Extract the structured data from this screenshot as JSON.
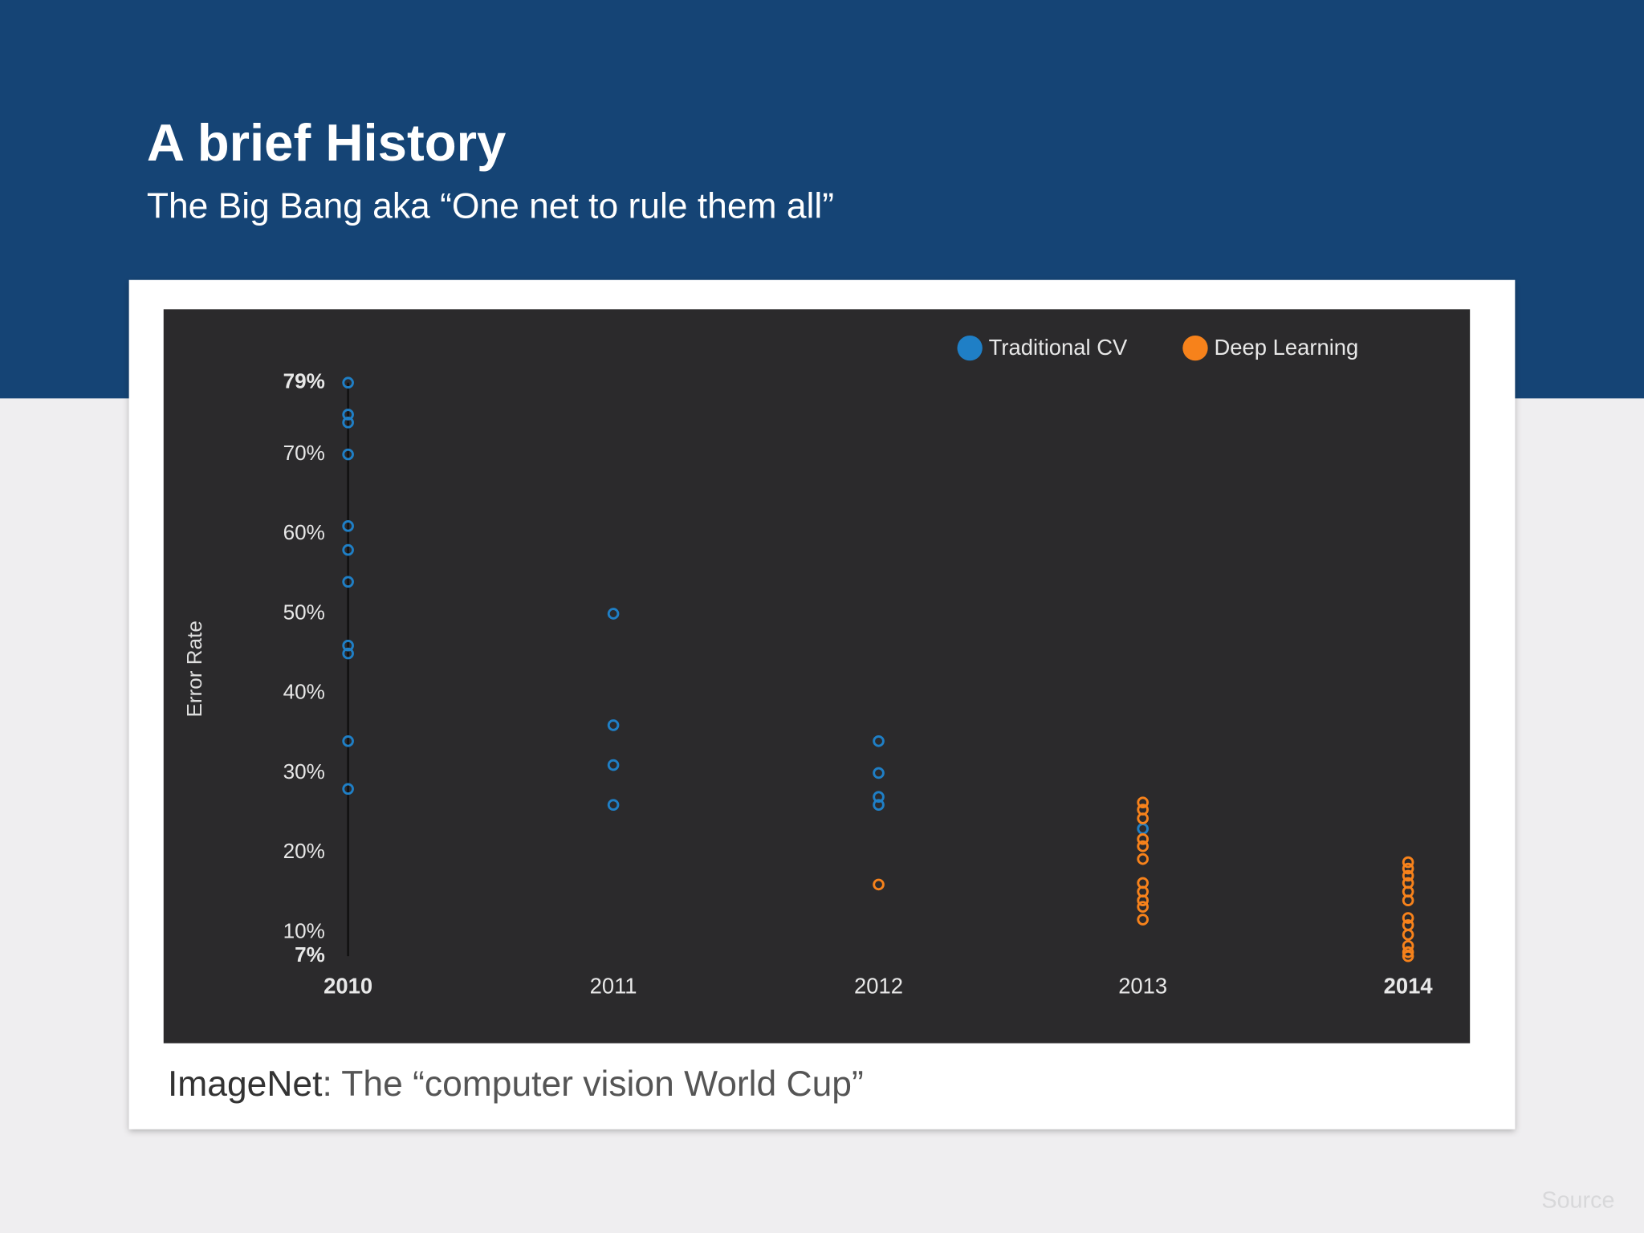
{
  "header": {
    "title": "A brief History",
    "subtitle": "The Big Bang aka “One net to rule them all”"
  },
  "chart_data": {
    "type": "scatter",
    "y_label": "Error Rate",
    "categories": [
      "2010",
      "2011",
      "2012",
      "2013",
      "2014"
    ],
    "ylim": [
      7,
      79
    ],
    "yticks": [
      {
        "value": 79,
        "label": "79%"
      },
      {
        "value": 70,
        "label": "70%"
      },
      {
        "value": 60,
        "label": "60%"
      },
      {
        "value": 50,
        "label": "50%"
      },
      {
        "value": 40,
        "label": "40%"
      },
      {
        "value": 30,
        "label": "30%"
      },
      {
        "value": 20,
        "label": "20%"
      },
      {
        "value": 10,
        "label": "10%"
      },
      {
        "value": 7,
        "label": "7%"
      }
    ],
    "legend": "top-right",
    "series": [
      {
        "name": "Traditional CV",
        "color": "#1f7fc6",
        "x": [
          "2010",
          "2010",
          "2010",
          "2010",
          "2010",
          "2010",
          "2010",
          "2010",
          "2010",
          "2010",
          "2010",
          "2011",
          "2011",
          "2011",
          "2011",
          "2012",
          "2012",
          "2012",
          "2012",
          "2013"
        ],
        "values": [
          79,
          75,
          74,
          70,
          61,
          58,
          54,
          46,
          45,
          34,
          28,
          50,
          36,
          31,
          26,
          34,
          30,
          27,
          26,
          23
        ]
      },
      {
        "name": "Deep Learning",
        "color": "#f7821b",
        "x": [
          "2012",
          "2013",
          "2013",
          "2013",
          "2013",
          "2013",
          "2013",
          "2013",
          "2013",
          "2013",
          "2013",
          "2013",
          "2014",
          "2014",
          "2014",
          "2014",
          "2014",
          "2014",
          "2014",
          "2014",
          "2014",
          "2014",
          "2014",
          "2014"
        ],
        "values": [
          16,
          26.3,
          25.4,
          24.3,
          21.7,
          20.8,
          19.2,
          16.2,
          15.1,
          14,
          13.2,
          11.6,
          18.8,
          18,
          17.1,
          16.2,
          15.1,
          14,
          11.8,
          10.9,
          9.7,
          8.3,
          7.5,
          7
        ]
      }
    ]
  },
  "caption": {
    "name": "ImageNet",
    "text": ": The “computer vision World Cup”"
  },
  "source": "Source"
}
